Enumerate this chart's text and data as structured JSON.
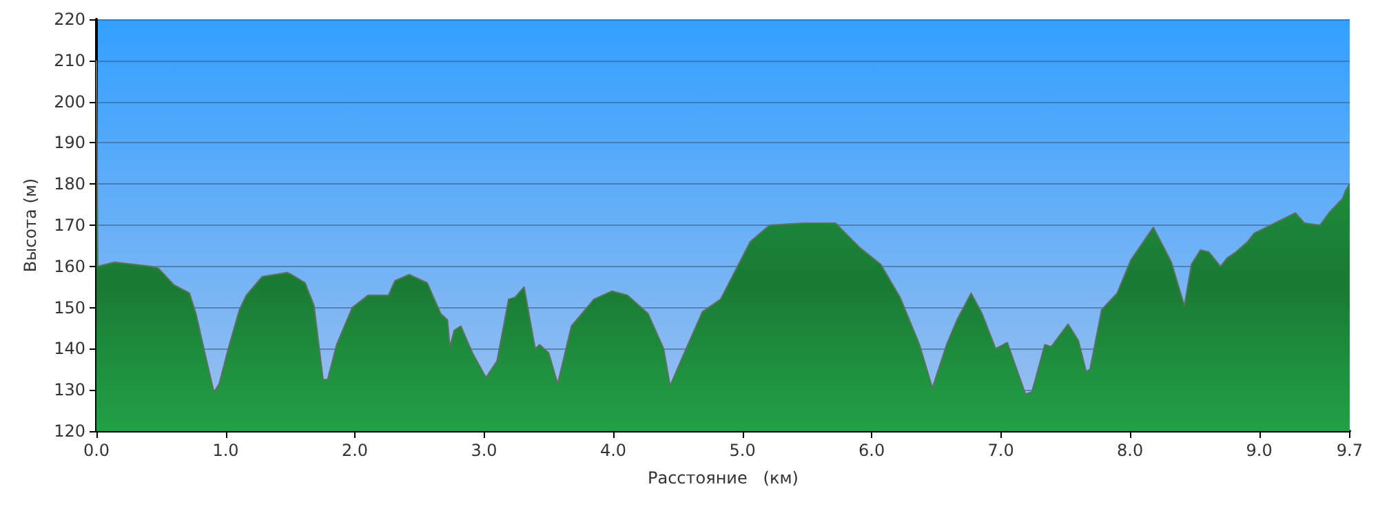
{
  "chart_data": {
    "type": "area",
    "xlabel": "Расстояние   (км)",
    "ylabel": "Высота (м)",
    "x": [
      0,
      0.01,
      0.14,
      0.42,
      0.48,
      0.6,
      0.72,
      0.77,
      0.846,
      0.909,
      0.95,
      1.02,
      1.107,
      1.16,
      1.283,
      1.475,
      1.51,
      1.614,
      1.684,
      1.754,
      1.789,
      1.859,
      1.98,
      2.103,
      2.26,
      2.31,
      2.42,
      2.56,
      2.665,
      2.717,
      2.735,
      2.77,
      2.82,
      2.91,
      3.015,
      3.1,
      3.19,
      3.24,
      3.31,
      3.396,
      3.43,
      3.5,
      3.57,
      3.676,
      3.85,
      3.99,
      4.11,
      4.27,
      4.39,
      4.44,
      4.55,
      4.69,
      4.83,
      4.97,
      5.06,
      5.21,
      5.47,
      5.72,
      5.91,
      6.07,
      6.22,
      6.37,
      6.47,
      6.58,
      6.66,
      6.77,
      6.855,
      6.96,
      7.05,
      7.19,
      7.24,
      7.34,
      7.39,
      7.52,
      7.6,
      7.66,
      7.69,
      7.78,
      7.9,
      8.005,
      8.18,
      8.32,
      8.42,
      8.475,
      8.545,
      8.61,
      8.7,
      8.75,
      8.82,
      8.91,
      8.96,
      9.15,
      9.28,
      9.35,
      9.47,
      9.54,
      9.645,
      9.67,
      9.7
    ],
    "series": [
      {
        "color": "#22a046",
        "values": [
          210,
          160,
          161,
          160,
          159.5,
          155.5,
          153.5,
          148.5,
          138,
          129.5,
          131.5,
          140,
          149.5,
          153,
          157.5,
          158.5,
          158,
          156,
          150.5,
          132.5,
          132.5,
          141,
          150,
          153,
          153,
          156.5,
          158,
          156,
          148.5,
          147,
          140.5,
          144.5,
          145.5,
          139,
          133,
          137,
          152,
          152.5,
          155,
          140,
          141,
          139,
          131.5,
          145.5,
          152,
          154,
          153,
          148.5,
          140,
          131,
          139,
          149,
          152,
          160.5,
          166,
          170,
          170.5,
          170.5,
          164.5,
          160.5,
          152.5,
          141,
          130.5,
          141,
          147,
          153.5,
          148.5,
          140,
          141.5,
          129,
          129.5,
          141,
          140.5,
          146,
          142,
          134.5,
          135,
          149.5,
          153.5,
          161.5,
          169.5,
          161,
          150.5,
          160.5,
          164,
          163.5,
          160,
          162,
          163.5,
          166,
          168,
          171,
          173,
          170.5,
          170,
          173,
          176.5,
          178.5,
          180
        ]
      }
    ],
    "xlim": [
      0,
      9.7
    ],
    "xticks": [
      {
        "value": 0,
        "label": "0.0"
      },
      {
        "value": 1,
        "label": "1.0"
      },
      {
        "value": 2,
        "label": "2.0"
      },
      {
        "value": 3,
        "label": "3.0"
      },
      {
        "value": 4,
        "label": "4.0"
      },
      {
        "value": 5,
        "label": "5.0"
      },
      {
        "value": 6,
        "label": "6.0"
      },
      {
        "value": 7,
        "label": "7.0"
      },
      {
        "value": 8,
        "label": "8.0"
      },
      {
        "value": 9,
        "label": "9.0"
      },
      9.7
    ],
    "ylim": [
      120,
      220
    ],
    "yticks": [
      120,
      130,
      140,
      150,
      160,
      170,
      180,
      190,
      200,
      210,
      220
    ],
    "grid": "y",
    "marker": "none",
    "line_style": "solid"
  }
}
